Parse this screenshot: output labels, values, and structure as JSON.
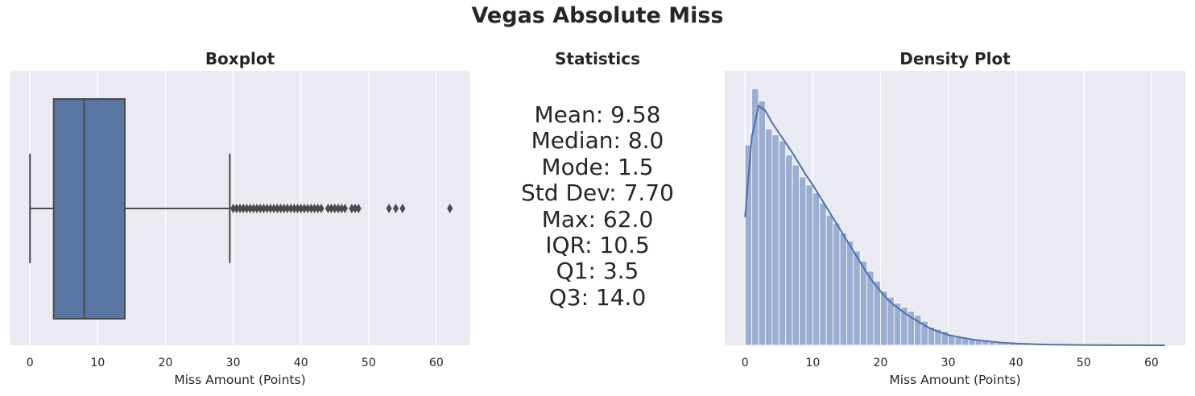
{
  "title": "Vegas Absolute Miss",
  "colors": {
    "background": "#EAEAF2",
    "grid": "#FFFFFF",
    "box": "#5975A4",
    "hist": "#4C72B0",
    "line": "#4A4A4A"
  },
  "chart_data": [
    {
      "type": "boxplot",
      "title": "Boxplot",
      "xlabel": "Miss Amount (Points)",
      "xlim": [
        -3,
        65
      ],
      "xticks": [
        0,
        10,
        20,
        30,
        40,
        50,
        60
      ],
      "grid": true,
      "box": {
        "whisker_low": 0,
        "q1": 3.5,
        "median": 8.0,
        "q3": 14.0,
        "whisker_high": 29.5
      },
      "outliers": [
        30.0,
        30.5,
        31.0,
        31.5,
        32.0,
        32.5,
        33.0,
        33.5,
        34.0,
        34.5,
        35.0,
        35.5,
        36.0,
        36.5,
        37.0,
        37.5,
        38.0,
        38.5,
        39.0,
        39.5,
        40.0,
        40.5,
        41.0,
        41.5,
        42.0,
        42.5,
        43.0,
        44.0,
        44.5,
        45.0,
        45.5,
        46.0,
        46.5,
        47.5,
        48.0,
        48.5,
        53.0,
        54.0,
        55.0,
        62.0
      ]
    },
    {
      "type": "text",
      "title": "Statistics",
      "lines": [
        "Mean: 9.58",
        "Median: 8.0",
        "Mode: 1.5",
        "Std Dev: 7.70",
        "Max: 62.0",
        "IQR: 10.5",
        "Q1: 3.5",
        "Q3: 14.0"
      ]
    },
    {
      "type": "histogram",
      "title": "Density Plot",
      "xlabel": "Miss Amount (Points)",
      "xlim": [
        -3,
        65
      ],
      "xticks": [
        0,
        10,
        20,
        30,
        40,
        50,
        60
      ],
      "grid": true,
      "kde": true,
      "bins": {
        "start": 0,
        "width": 1,
        "counts": [
          1000,
          1280,
          1220,
          1080,
          1050,
          1020,
          950,
          900,
          840,
          800,
          760,
          710,
          650,
          610,
          560,
          520,
          470,
          420,
          370,
          320,
          270,
          240,
          210,
          190,
          170,
          150,
          120,
          90,
          80,
          70,
          50,
          40,
          35,
          30,
          25,
          20,
          15,
          12,
          10,
          8,
          7,
          6,
          5,
          4,
          3,
          3,
          2,
          2,
          2,
          1,
          1,
          1,
          1,
          1,
          1,
          1,
          1,
          1,
          1,
          1,
          1,
          1
        ]
      },
      "kde_points": [
        [
          0,
          640
        ],
        [
          1,
          1040
        ],
        [
          2,
          1195
        ],
        [
          3,
          1170
        ],
        [
          4,
          1110
        ],
        [
          5,
          1060
        ],
        [
          6,
          1010
        ],
        [
          7,
          960
        ],
        [
          8,
          905
        ],
        [
          9,
          850
        ],
        [
          10,
          800
        ],
        [
          11,
          745
        ],
        [
          12,
          690
        ],
        [
          13,
          635
        ],
        [
          14,
          580
        ],
        [
          15,
          525
        ],
        [
          16,
          470
        ],
        [
          17,
          415
        ],
        [
          18,
          360
        ],
        [
          19,
          310
        ],
        [
          20,
          270
        ],
        [
          21,
          230
        ],
        [
          22,
          200
        ],
        [
          23,
          175
        ],
        [
          24,
          150
        ],
        [
          25,
          130
        ],
        [
          26,
          110
        ],
        [
          27,
          90
        ],
        [
          28,
          75
        ],
        [
          29,
          63
        ],
        [
          30,
          52
        ],
        [
          32,
          38
        ],
        [
          34,
          27
        ],
        [
          36,
          19
        ],
        [
          38,
          13
        ],
        [
          40,
          9
        ],
        [
          43,
          5
        ],
        [
          46,
          3
        ],
        [
          50,
          1.5
        ],
        [
          55,
          0.5
        ],
        [
          62,
          0
        ]
      ]
    }
  ]
}
